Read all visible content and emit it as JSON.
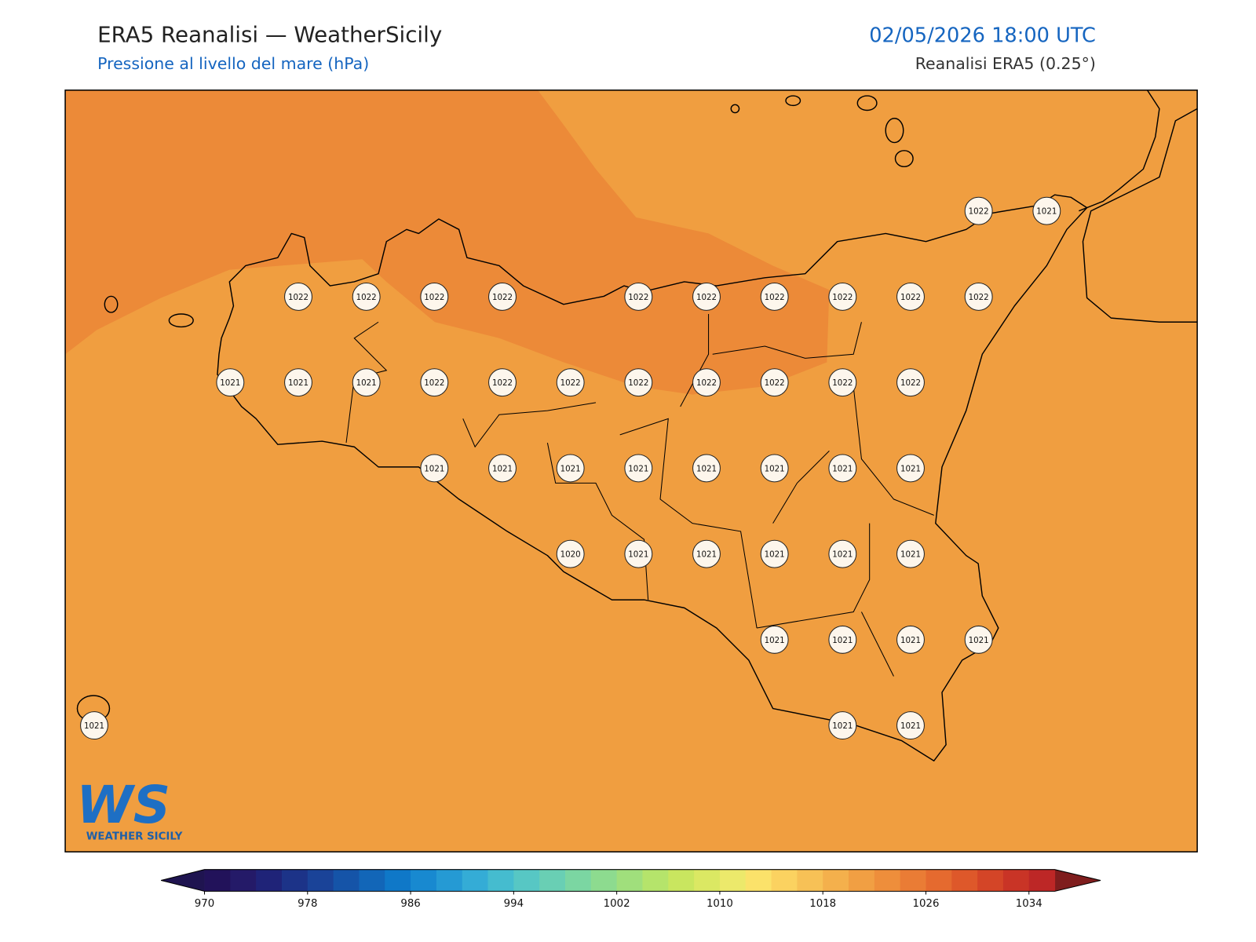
{
  "header": {
    "title": "ERA5 Reanalisi — WeatherSicily",
    "subtitle": "Pressione al livello del mare (hPa)",
    "datetime": "02/05/2026 18:00 UTC",
    "source": "Reanalisi ERA5 (0.25°)"
  },
  "stations": {
    "rows": [
      [
        null,
        null,
        null,
        null,
        null,
        null,
        null,
        null,
        null,
        null,
        null,
        null,
        null,
        1022,
        1021
      ],
      [
        null,
        null,
        null,
        1022,
        1022,
        1022,
        1022,
        null,
        1022,
        1022,
        1022,
        1022,
        1022,
        1022,
        null
      ],
      [
        null,
        null,
        1021,
        1021,
        1021,
        1022,
        1022,
        1022,
        1022,
        1022,
        1022,
        1022,
        1022,
        null,
        null
      ],
      [
        null,
        null,
        null,
        null,
        null,
        1021,
        1021,
        1021,
        1021,
        1021,
        1021,
        1021,
        1021,
        null,
        null
      ],
      [
        null,
        null,
        null,
        null,
        null,
        null,
        null,
        1020,
        1021,
        1021,
        1021,
        1021,
        1021,
        null,
        null
      ],
      [
        null,
        null,
        null,
        null,
        null,
        null,
        null,
        null,
        null,
        null,
        1021,
        1021,
        1021,
        1021,
        null
      ],
      [
        1021,
        null,
        null,
        null,
        null,
        null,
        null,
        null,
        null,
        null,
        null,
        1021,
        1021,
        null,
        null
      ]
    ]
  },
  "colorbar": {
    "range": [
      970,
      1036
    ],
    "ticks": [
      970,
      978,
      986,
      994,
      1002,
      1010,
      1018,
      1026,
      1034
    ],
    "colors": [
      "#22125a",
      "#241a68",
      "#1f2378",
      "#1c3388",
      "#1a4398",
      "#1554a8",
      "#1266b8",
      "#0f78c8",
      "#1889d0",
      "#259ad4",
      "#34acd6",
      "#45bccf",
      "#57c7c4",
      "#69cfb4",
      "#7bd6a2",
      "#8ddb8f",
      "#a0df7c",
      "#b5e46b",
      "#c9e65f",
      "#dbe863",
      "#ece96b",
      "#fbe26a",
      "#fbd260",
      "#f7c156",
      "#f4b04c",
      "#f19f43",
      "#ee8e3b",
      "#ea7c35",
      "#e56a2f",
      "#de582a",
      "#d44527",
      "#c93426",
      "#bd2726"
    ],
    "extend_colors": [
      "#1f1450",
      "#7f1d1d"
    ]
  },
  "logo": {
    "mark": "WS",
    "text": "WEATHER SICILY"
  }
}
